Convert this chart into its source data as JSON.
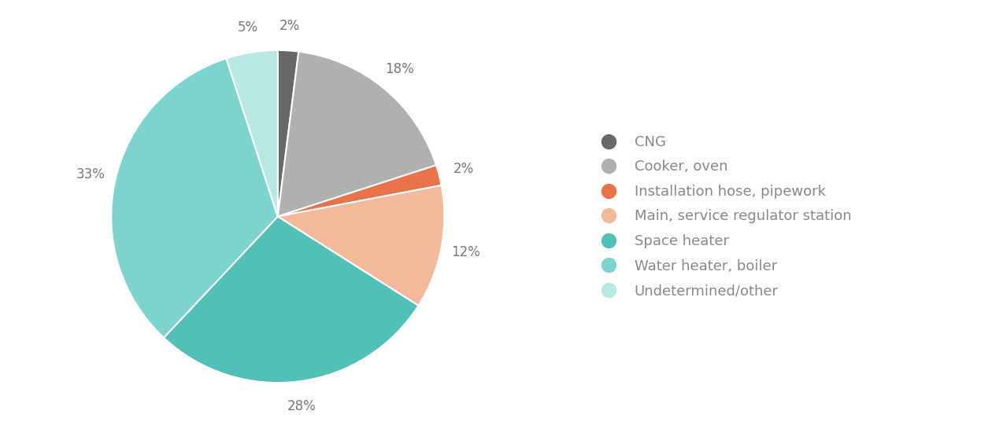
{
  "labels": [
    "CNG",
    "Cooker, oven",
    "Installation hose, pipework",
    "Main, service regulator station",
    "Space heater",
    "Water heater, boiler",
    "Undetermined/other"
  ],
  "values": [
    2,
    18,
    2,
    12,
    28,
    33,
    5
  ],
  "colors": [
    "#686868",
    "#b0b0b0",
    "#e8724a",
    "#f2b99a",
    "#52bfb8",
    "#7dd4cc",
    "#b8e8e2"
  ],
  "pct_labels": [
    "2%",
    "18%",
    "2%",
    "12%",
    "28%",
    "33%",
    "5%"
  ],
  "label_fontsize": 12,
  "legend_fontsize": 13,
  "label_color": "#777777",
  "legend_text_color": "#888888"
}
